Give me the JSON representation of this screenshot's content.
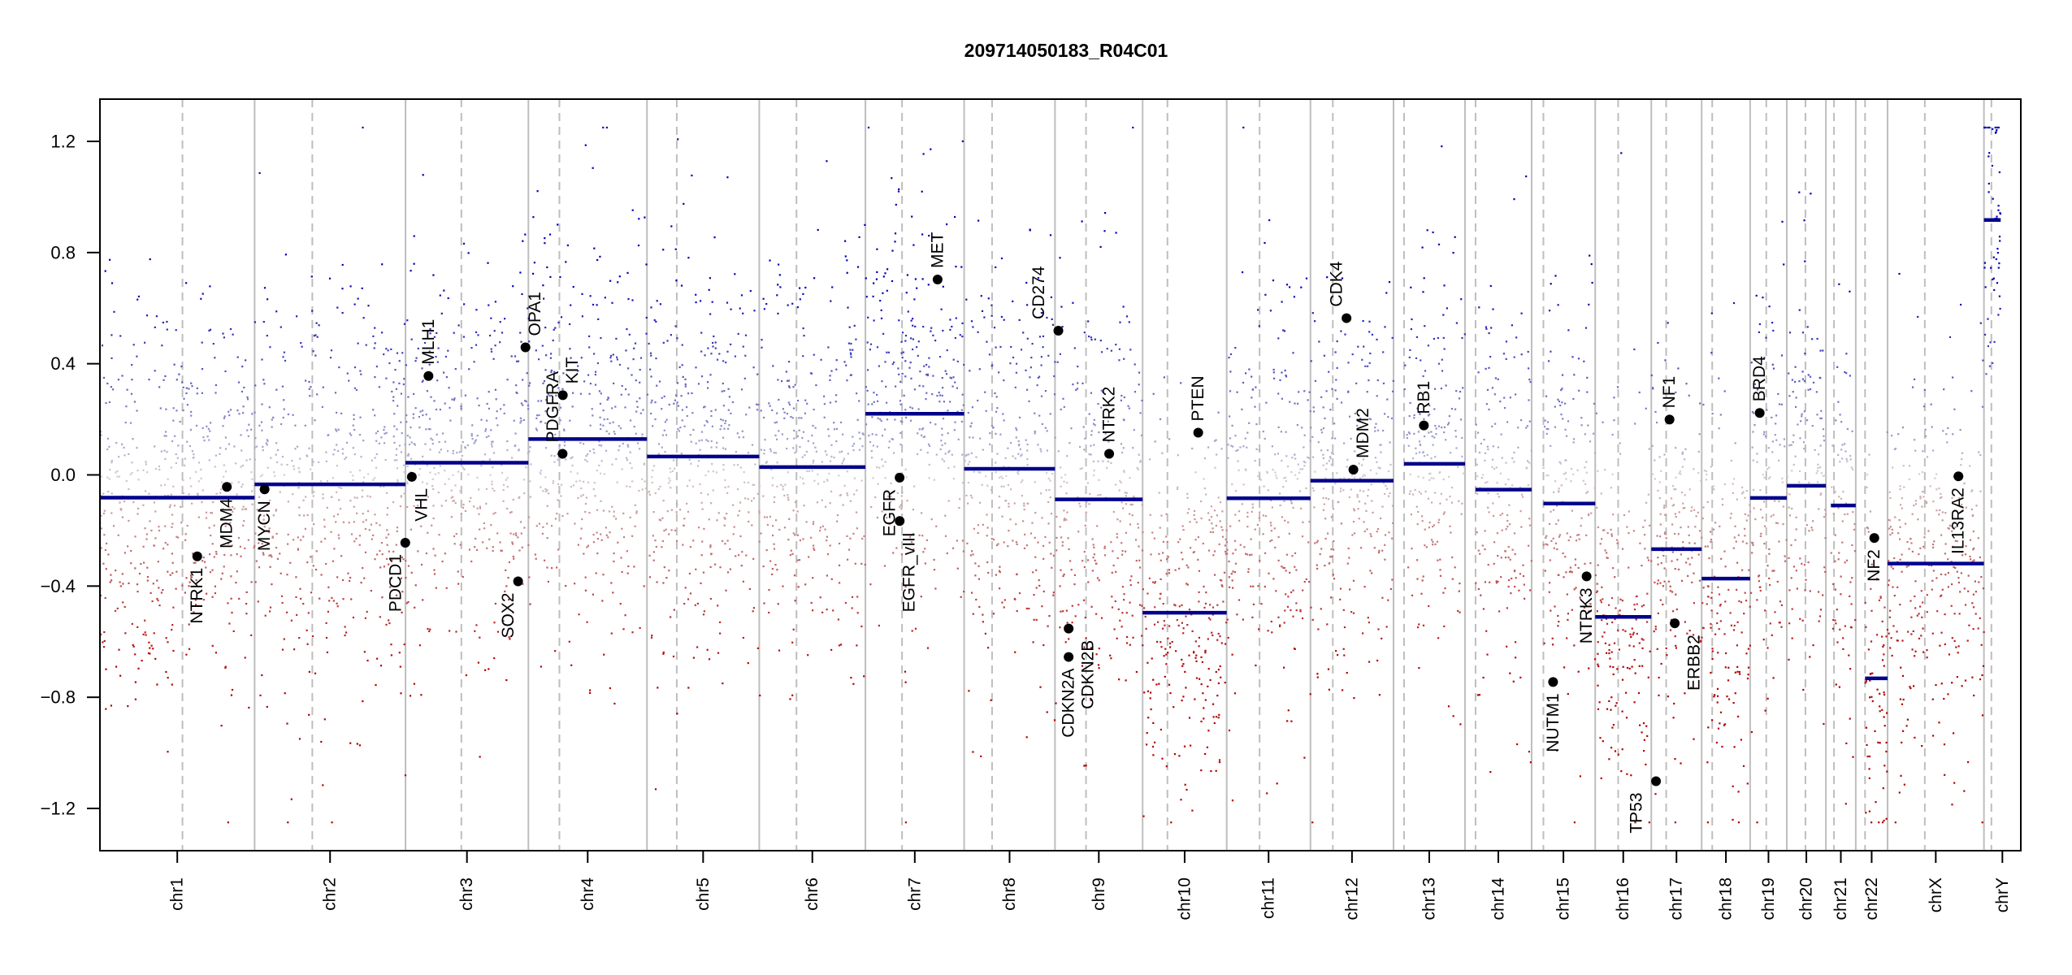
{
  "chart_data": {
    "type": "scatter",
    "title": "209714050183_R04C01",
    "xlabel": "",
    "ylabel": "",
    "ylim": [
      -1.352,
      1.352
    ],
    "grid": false,
    "legend": "none",
    "yticks": [
      {
        "value": 1.2,
        "label": "1.2"
      },
      {
        "value": 0.8,
        "label": "0.8"
      },
      {
        "value": 0.4,
        "label": "0.4"
      },
      {
        "value": 0.0,
        "label": "0.0"
      },
      {
        "value": -0.4,
        "label": "−0.4"
      },
      {
        "value": -0.8,
        "label": "−0.8"
      },
      {
        "value": -1.2,
        "label": "−1.2"
      }
    ],
    "probe_clip": [
      -1.25,
      1.25
    ],
    "colors": {
      "gain": "#0000b4",
      "neutral": "#d3d3d3",
      "loss": "#b40000",
      "segment": "#00008b",
      "boundary": "#bebebe",
      "gene": "#000000"
    },
    "chromosomes": [
      {
        "name": "chr1",
        "length_mb": 249.25,
        "centromere_mb": 133,
        "segments": [
          {
            "start_mb": 0,
            "end_mb": 249.25,
            "value": -0.082
          }
        ]
      },
      {
        "name": "chr2",
        "length_mb": 243.2,
        "centromere_mb": 93,
        "segments": [
          {
            "start_mb": 0,
            "end_mb": 243.2,
            "value": -0.034
          }
        ]
      },
      {
        "name": "chr3",
        "length_mb": 198.0,
        "centromere_mb": 90,
        "segments": [
          {
            "start_mb": 0,
            "end_mb": 198.0,
            "value": 0.044
          }
        ]
      },
      {
        "name": "chr4",
        "length_mb": 191.15,
        "centromere_mb": 50,
        "segments": [
          {
            "start_mb": 0,
            "end_mb": 191.15,
            "value": 0.129
          }
        ]
      },
      {
        "name": "chr5",
        "length_mb": 180.9,
        "centromere_mb": 48,
        "segments": [
          {
            "start_mb": 0,
            "end_mb": 180.9,
            "value": 0.066
          }
        ]
      },
      {
        "name": "chr6",
        "length_mb": 171.1,
        "centromere_mb": 60,
        "segments": [
          {
            "start_mb": 0,
            "end_mb": 171.1,
            "value": 0.028
          }
        ]
      },
      {
        "name": "chr7",
        "length_mb": 159.1,
        "centromere_mb": 59,
        "segments": [
          {
            "start_mb": 0,
            "end_mb": 159.1,
            "value": 0.22
          }
        ]
      },
      {
        "name": "chr8",
        "length_mb": 146.4,
        "centromere_mb": 45,
        "segments": [
          {
            "start_mb": 0,
            "end_mb": 146.4,
            "value": 0.022
          }
        ]
      },
      {
        "name": "chr9",
        "length_mb": 141.2,
        "centromere_mb": 50,
        "segments": [
          {
            "start_mb": 0,
            "end_mb": 141.2,
            "value": -0.088
          }
        ]
      },
      {
        "name": "chr10",
        "length_mb": 135.5,
        "centromere_mb": 40,
        "segments": [
          {
            "start_mb": 0,
            "end_mb": 135.5,
            "value": -0.496
          }
        ]
      },
      {
        "name": "chr11",
        "length_mb": 135.0,
        "centromere_mb": 53,
        "segments": [
          {
            "start_mb": 0,
            "end_mb": 135.0,
            "value": -0.084
          }
        ]
      },
      {
        "name": "chr12",
        "length_mb": 133.85,
        "centromere_mb": 36,
        "segments": [
          {
            "start_mb": 0,
            "end_mb": 133.85,
            "value": -0.021
          }
        ]
      },
      {
        "name": "chr13",
        "length_mb": 115.2,
        "centromere_mb": 17,
        "segments": [
          {
            "start_mb": 17,
            "end_mb": 115.2,
            "value": 0.04
          }
        ]
      },
      {
        "name": "chr14",
        "length_mb": 107.35,
        "centromere_mb": 17,
        "segments": [
          {
            "start_mb": 17,
            "end_mb": 107.35,
            "value": -0.053
          }
        ]
      },
      {
        "name": "chr15",
        "length_mb": 102.5,
        "centromere_mb": 19,
        "segments": [
          {
            "start_mb": 19,
            "end_mb": 102.5,
            "value": -0.103
          }
        ]
      },
      {
        "name": "chr16",
        "length_mb": 90.35,
        "centromere_mb": 37,
        "segments": [
          {
            "start_mb": 0,
            "end_mb": 90.35,
            "value": -0.511
          }
        ]
      },
      {
        "name": "chr17",
        "length_mb": 81.2,
        "centromere_mb": 24,
        "segments": [
          {
            "start_mb": 0,
            "end_mb": 81.2,
            "value": -0.267
          }
        ]
      },
      {
        "name": "chr18",
        "length_mb": 78.1,
        "centromere_mb": 17,
        "segments": [
          {
            "start_mb": 0,
            "end_mb": 78.1,
            "value": -0.373
          }
        ]
      },
      {
        "name": "chr19",
        "length_mb": 59.1,
        "centromere_mb": 26,
        "segments": [
          {
            "start_mb": 0,
            "end_mb": 59.1,
            "value": -0.083
          }
        ]
      },
      {
        "name": "chr20",
        "length_mb": 63.0,
        "centromere_mb": 30,
        "segments": [
          {
            "start_mb": 0,
            "end_mb": 63.0,
            "value": -0.039
          }
        ]
      },
      {
        "name": "chr21",
        "length_mb": 48.1,
        "centromere_mb": 13,
        "segments": [
          {
            "start_mb": 8,
            "end_mb": 48.1,
            "value": -0.11
          }
        ]
      },
      {
        "name": "chr22",
        "length_mb": 51.3,
        "centromere_mb": 15,
        "segments": [
          {
            "start_mb": 15,
            "end_mb": 51.3,
            "value": -0.732
          }
        ]
      },
      {
        "name": "chrX",
        "length_mb": 155.3,
        "centromere_mb": 60,
        "segments": [
          {
            "start_mb": 0,
            "end_mb": 155.3,
            "value": -0.319
          }
        ]
      },
      {
        "name": "chrY",
        "length_mb": 59.4,
        "centromere_mb": 12,
        "segments": [
          {
            "start_mb": 0,
            "end_mb": 27,
            "value": 0.917
          }
        ]
      }
    ],
    "genes": [
      {
        "name": "NTRK1",
        "chrom": "chr1",
        "pos_mb": 156.8,
        "value": -0.293
      },
      {
        "name": "MDM4",
        "chrom": "chr1",
        "pos_mb": 204.5,
        "value": -0.043
      },
      {
        "name": "MYCN",
        "chrom": "chr2",
        "pos_mb": 16.1,
        "value": -0.052
      },
      {
        "name": "PDCD1",
        "chrom": "chr2",
        "pos_mb": 242.8,
        "value": -0.244
      },
      {
        "name": "VHL",
        "chrom": "chr3",
        "pos_mb": 10.2,
        "value": -0.007
      },
      {
        "name": "MLH1",
        "chrom": "chr3",
        "pos_mb": 37.0,
        "value": 0.356
      },
      {
        "name": "SOX2",
        "chrom": "chr3",
        "pos_mb": 181.4,
        "value": -0.383
      },
      {
        "name": "OPA1",
        "chrom": "chr3",
        "pos_mb": 193.3,
        "value": 0.459
      },
      {
        "name": "PDGFRA",
        "chrom": "chr4",
        "pos_mb": 55.1,
        "value": 0.076
      },
      {
        "name": "KIT",
        "chrom": "chr4",
        "pos_mb": 55.5,
        "value": 0.287
      },
      {
        "name": "EGFR",
        "chrom": "chr7",
        "pos_mb": 55.1,
        "value": -0.01
      },
      {
        "name": "EGFR_vIII",
        "chrom": "chr7",
        "pos_mb": 55.2,
        "value": -0.166
      },
      {
        "name": "MET",
        "chrom": "chr7",
        "pos_mb": 116.3,
        "value": 0.703
      },
      {
        "name": "CD274",
        "chrom": "chr9",
        "pos_mb": 5.45,
        "value": 0.519
      },
      {
        "name": "CDKN2A",
        "chrom": "chr9",
        "pos_mb": 21.97,
        "value": -0.655
      },
      {
        "name": "CDKN2B",
        "chrom": "chr9",
        "pos_mb": 22.0,
        "value": -0.553
      },
      {
        "name": "NTRK2",
        "chrom": "chr9",
        "pos_mb": 87.3,
        "value": 0.076
      },
      {
        "name": "PTEN",
        "chrom": "chr10",
        "pos_mb": 89.6,
        "value": 0.152
      },
      {
        "name": "CDK4",
        "chrom": "chr12",
        "pos_mb": 58.1,
        "value": 0.564
      },
      {
        "name": "MDM2",
        "chrom": "chr12",
        "pos_mb": 69.2,
        "value": 0.019
      },
      {
        "name": "RB1",
        "chrom": "chr13",
        "pos_mb": 48.9,
        "value": 0.178
      },
      {
        "name": "NUTM1",
        "chrom": "chr15",
        "pos_mb": 34.6,
        "value": -0.745
      },
      {
        "name": "NTRK3",
        "chrom": "chr15",
        "pos_mb": 88.6,
        "value": -0.365
      },
      {
        "name": "TP53",
        "chrom": "chr17",
        "pos_mb": 7.6,
        "value": -1.102
      },
      {
        "name": "NF1",
        "chrom": "chr17",
        "pos_mb": 29.4,
        "value": 0.199
      },
      {
        "name": "ERBB2",
        "chrom": "chr17",
        "pos_mb": 37.8,
        "value": -0.534
      },
      {
        "name": "BRD4",
        "chrom": "chr19",
        "pos_mb": 15.4,
        "value": 0.223
      },
      {
        "name": "NF2",
        "chrom": "chr22",
        "pos_mb": 29.9,
        "value": -0.227
      },
      {
        "name": "IL13RA2",
        "chrom": "chrX",
        "pos_mb": 114.2,
        "value": -0.005
      }
    ]
  }
}
